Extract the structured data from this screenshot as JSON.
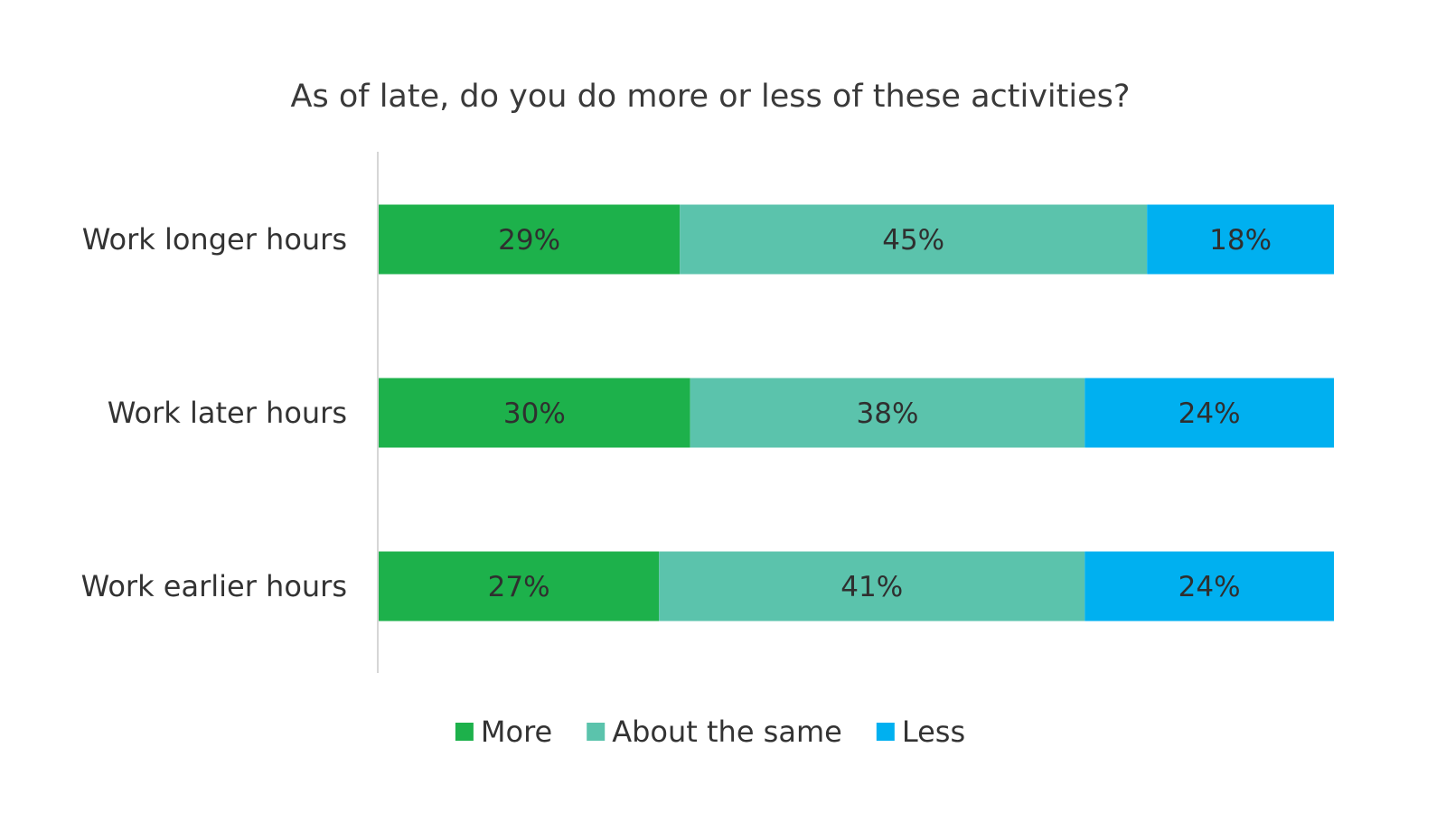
{
  "chart_data": {
    "type": "bar",
    "orientation": "horizontal",
    "stacked": true,
    "title": "As of late, do you do more or less of these activities?",
    "xlabel": "",
    "ylabel": "",
    "categories": [
      "Work longer hours",
      "Work later hours",
      "Work earlier hours"
    ],
    "series": [
      {
        "name": "More",
        "color": "#1db14b",
        "values": [
          29,
          30,
          27
        ],
        "labels": [
          "29%",
          "30%",
          "27%"
        ]
      },
      {
        "name": "About the same",
        "color": "#5bc3ac",
        "values": [
          45,
          38,
          41
        ],
        "labels": [
          "45%",
          "38%",
          "41%"
        ]
      },
      {
        "name": "Less",
        "color": "#00b0f0",
        "values": [
          18,
          24,
          24
        ],
        "labels": [
          "18%",
          "24%",
          "24%"
        ]
      }
    ],
    "xlim": [
      0,
      92
    ],
    "grid": false,
    "legend_position": "bottom"
  }
}
